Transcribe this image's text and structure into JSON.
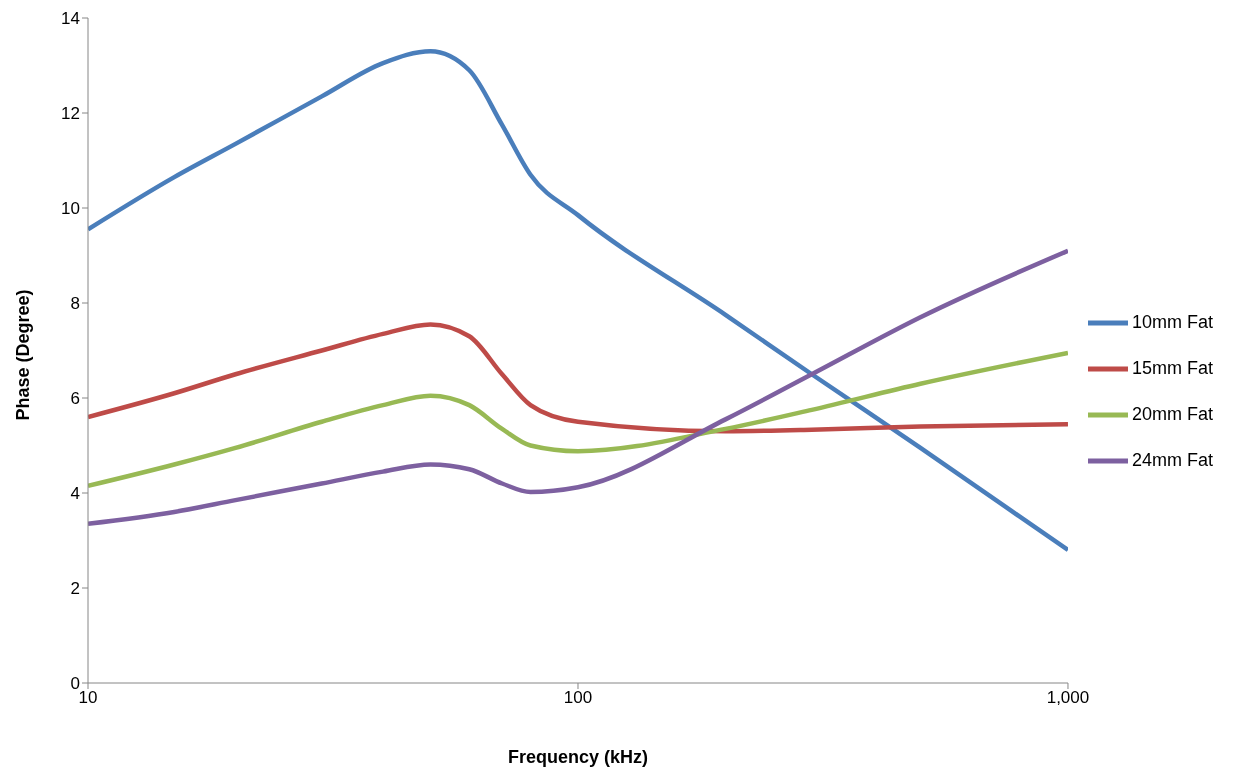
{
  "chart_data": {
    "type": "line",
    "xlabel": "Frequency (kHz)",
    "ylabel": "Phase (Degree)",
    "x": [
      10,
      15,
      20,
      30,
      40,
      50,
      60,
      70,
      80,
      100,
      200,
      300,
      500,
      1000
    ],
    "log": "x",
    "xlim": [
      10,
      1000
    ],
    "xticks": [
      10,
      100,
      {
        "value": 1000,
        "label": "1,000"
      }
    ],
    "ylim": [
      0,
      14
    ],
    "yticks": [
      0,
      2,
      4,
      6,
      8,
      10,
      12,
      14
    ],
    "grid": false,
    "legend": "right",
    "marker": "none",
    "line_style": "solid",
    "series": [
      {
        "name": "10mm Fat",
        "color": "#4a7ebb",
        "values": [
          9.55,
          10.65,
          11.35,
          12.35,
          13.05,
          13.3,
          12.9,
          11.75,
          10.7,
          9.85,
          7.75,
          6.5,
          4.95,
          2.8
        ]
      },
      {
        "name": "15mm Fat",
        "color": "#be4b48",
        "values": [
          5.6,
          6.1,
          6.5,
          7.0,
          7.35,
          7.55,
          7.3,
          6.5,
          5.85,
          5.5,
          5.3,
          5.33,
          5.4,
          5.45
        ]
      },
      {
        "name": "20mm Fat",
        "color": "#98b954",
        "values": [
          4.15,
          4.6,
          4.95,
          5.5,
          5.85,
          6.05,
          5.85,
          5.35,
          5.0,
          4.88,
          5.35,
          5.75,
          6.3,
          6.95
        ]
      },
      {
        "name": "24mm Fat",
        "color": "#7d60a0",
        "values": [
          3.35,
          3.6,
          3.85,
          4.2,
          4.45,
          4.6,
          4.5,
          4.2,
          4.02,
          4.12,
          5.55,
          6.5,
          7.7,
          9.1
        ]
      }
    ]
  }
}
